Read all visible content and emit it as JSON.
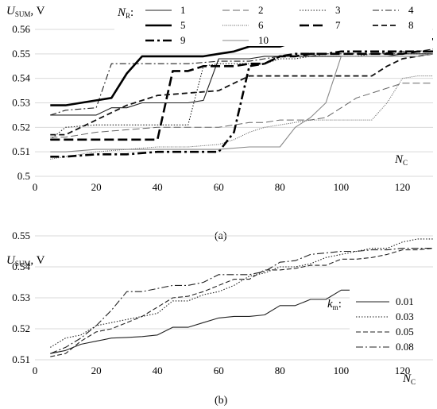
{
  "chart_data": [
    {
      "panel": "(a)",
      "type": "line",
      "ylabel": "U",
      "ylabel_sub": "SUM",
      "ylabel_unit": ", V",
      "xlabel": "N",
      "xlabel_sub": "C",
      "legend_title": "N",
      "legend_title_sub": "R",
      "legend_title_suffix": ":",
      "xlim": [
        0,
        130
      ],
      "ylim": [
        0.5,
        0.56
      ],
      "xticks": [
        "0",
        "20",
        "40",
        "60",
        "80",
        "100",
        "120"
      ],
      "yticks": [
        "0.5",
        "0.51",
        "0.52",
        "0.53",
        "0.54",
        "0.55",
        "0.56"
      ],
      "series": [
        {
          "name": "1",
          "style": "solid-thin",
          "x": [
            5,
            10,
            20,
            25,
            30,
            35,
            40,
            45,
            50,
            55,
            60,
            65,
            70,
            75,
            80,
            85,
            90,
            95,
            100,
            105,
            110,
            115,
            120,
            125,
            130
          ],
          "y": [
            0.525,
            0.525,
            0.525,
            0.528,
            0.528,
            0.53,
            0.53,
            0.53,
            0.53,
            0.531,
            0.548,
            0.548,
            0.548,
            0.549,
            0.549,
            0.549,
            0.549,
            0.549,
            0.549,
            0.549,
            0.549,
            0.549,
            0.55,
            0.55,
            0.55
          ]
        },
        {
          "name": "2",
          "style": "long-dash-thin",
          "x": [
            5,
            10,
            20,
            30,
            40,
            50,
            60,
            65,
            70,
            75,
            80,
            85,
            90,
            95,
            100,
            105,
            110,
            115,
            120,
            125,
            130
          ],
          "y": [
            0.516,
            0.516,
            0.518,
            0.519,
            0.52,
            0.52,
            0.52,
            0.521,
            0.522,
            0.522,
            0.523,
            0.523,
            0.523,
            0.524,
            0.528,
            0.532,
            0.534,
            0.536,
            0.538,
            0.538,
            0.538
          ]
        },
        {
          "name": "3",
          "style": "dotted",
          "x": [
            5,
            10,
            20,
            30,
            40,
            45,
            50,
            55,
            60,
            65,
            70,
            75,
            80,
            85,
            90,
            95,
            100,
            105,
            110,
            115,
            120,
            125,
            130
          ],
          "y": [
            0.515,
            0.52,
            0.521,
            0.521,
            0.521,
            0.521,
            0.521,
            0.545,
            0.546,
            0.546,
            0.546,
            0.546,
            0.548,
            0.548,
            0.549,
            0.549,
            0.549,
            0.549,
            0.55,
            0.55,
            0.55,
            0.55,
            0.55
          ]
        },
        {
          "name": "4",
          "style": "dash-dot-thin",
          "x": [
            5,
            10,
            20,
            25,
            30,
            40,
            50,
            60,
            65,
            70,
            75,
            80,
            85,
            90,
            95,
            100,
            110,
            120,
            125,
            130
          ],
          "y": [
            0.525,
            0.527,
            0.528,
            0.546,
            0.546,
            0.546,
            0.546,
            0.547,
            0.547,
            0.547,
            0.548,
            0.549,
            0.549,
            0.549,
            0.55,
            0.55,
            0.55,
            0.551,
            0.551,
            0.552
          ]
        },
        {
          "name": "5",
          "style": "solid-bold",
          "x": [
            5,
            10,
            15,
            20,
            25,
            30,
            35,
            40,
            45,
            50,
            55,
            60,
            65,
            70,
            75,
            80,
            85,
            90,
            95,
            100,
            105,
            110,
            115,
            120,
            125,
            130
          ],
          "y": [
            0.529,
            0.529,
            0.53,
            0.531,
            0.532,
            0.542,
            0.549,
            0.549,
            0.549,
            0.549,
            0.549,
            0.55,
            0.551,
            0.553,
            0.553,
            0.553,
            0.555,
            0.555,
            0.555,
            0.555,
            0.555,
            0.555,
            0.555,
            0.556,
            0.556,
            0.556
          ]
        },
        {
          "name": "6",
          "style": "fine-dotted",
          "x": [
            5,
            10,
            20,
            30,
            40,
            50,
            60,
            65,
            70,
            75,
            80,
            85,
            90,
            95,
            100,
            105,
            110,
            115,
            120,
            125,
            130
          ],
          "y": [
            0.507,
            0.508,
            0.51,
            0.511,
            0.512,
            0.512,
            0.513,
            0.515,
            0.518,
            0.52,
            0.521,
            0.522,
            0.523,
            0.523,
            0.523,
            0.523,
            0.523,
            0.53,
            0.54,
            0.541,
            0.541
          ]
        },
        {
          "name": "7",
          "style": "long-dash-bold",
          "x": [
            5,
            10,
            20,
            30,
            40,
            45,
            50,
            55,
            60,
            65,
            70,
            75,
            80,
            85,
            90,
            95,
            100,
            105,
            110,
            115,
            120,
            125,
            130
          ],
          "y": [
            0.515,
            0.515,
            0.515,
            0.515,
            0.515,
            0.543,
            0.543,
            0.545,
            0.545,
            0.545,
            0.546,
            0.546,
            0.549,
            0.549,
            0.55,
            0.55,
            0.55,
            0.55,
            0.55,
            0.55,
            0.55,
            0.551,
            0.551
          ]
        },
        {
          "name": "8",
          "style": "dash-medium",
          "x": [
            5,
            10,
            20,
            30,
            40,
            50,
            60,
            65,
            70,
            75,
            80,
            85,
            90,
            95,
            100,
            105,
            110,
            115,
            120,
            125,
            130
          ],
          "y": [
            0.517,
            0.517,
            0.523,
            0.529,
            0.533,
            0.534,
            0.535,
            0.538,
            0.541,
            0.541,
            0.541,
            0.541,
            0.541,
            0.541,
            0.541,
            0.541,
            0.541,
            0.545,
            0.548,
            0.549,
            0.55
          ]
        },
        {
          "name": "9",
          "style": "dash-dot-bold",
          "x": [
            5,
            10,
            20,
            30,
            40,
            50,
            60,
            65,
            70,
            75,
            80,
            85,
            90,
            95,
            100,
            105,
            110,
            115,
            120,
            125,
            130
          ],
          "y": [
            0.508,
            0.508,
            0.509,
            0.509,
            0.51,
            0.51,
            0.51,
            0.518,
            0.545,
            0.546,
            0.549,
            0.55,
            0.55,
            0.55,
            0.551,
            0.551,
            0.551,
            0.551,
            0.551,
            0.551,
            0.551
          ]
        },
        {
          "name": "10",
          "style": "solid-grey",
          "x": [
            5,
            10,
            20,
            30,
            40,
            50,
            60,
            70,
            80,
            85,
            90,
            95,
            100,
            105,
            110,
            115,
            120,
            125,
            130
          ],
          "y": [
            0.51,
            0.51,
            0.511,
            0.511,
            0.511,
            0.511,
            0.511,
            0.512,
            0.512,
            0.52,
            0.524,
            0.53,
            0.549,
            0.549,
            0.549,
            0.549,
            0.549,
            0.549,
            0.55
          ]
        }
      ]
    },
    {
      "panel": "(b)",
      "type": "line",
      "ylabel": "U",
      "ylabel_sub": "SUM",
      "ylabel_unit": ", V",
      "xlabel": "N",
      "xlabel_sub": "C",
      "legend_title": "k",
      "legend_title_sub": "m",
      "legend_title_suffix": ":",
      "xlim": [
        0,
        130
      ],
      "ylim": [
        0.51,
        0.55
      ],
      "xticks": [
        "0",
        "20",
        "40",
        "60",
        "80",
        "100",
        "120"
      ],
      "yticks": [
        "0.51",
        "0.52",
        "0.53",
        "0.54",
        "0.55"
      ],
      "series": [
        {
          "name": "0.01",
          "style": "solid",
          "x": [
            5,
            10,
            15,
            20,
            25,
            30,
            35,
            40,
            45,
            50,
            55,
            60,
            65,
            70,
            75,
            80,
            85,
            90,
            95,
            100,
            105,
            110,
            115,
            120,
            125,
            130
          ],
          "y": [
            0.512,
            0.513,
            0.515,
            0.516,
            0.517,
            0.5172,
            0.5175,
            0.518,
            0.5205,
            0.5205,
            0.522,
            0.5235,
            0.524,
            0.524,
            0.5245,
            0.5275,
            0.5275,
            0.5295,
            0.5295,
            0.5325,
            0.5325,
            0.5325,
            0.5325,
            0.5325,
            0.5325,
            0.5325
          ]
        },
        {
          "name": "0.03",
          "style": "dotted",
          "x": [
            5,
            10,
            15,
            20,
            25,
            30,
            35,
            40,
            45,
            50,
            55,
            60,
            65,
            70,
            75,
            80,
            85,
            90,
            95,
            100,
            105,
            110,
            115,
            120,
            125,
            130
          ],
          "y": [
            0.514,
            0.517,
            0.518,
            0.521,
            0.522,
            0.523,
            0.524,
            0.525,
            0.529,
            0.529,
            0.531,
            0.532,
            0.534,
            0.537,
            0.538,
            0.54,
            0.54,
            0.541,
            0.543,
            0.544,
            0.545,
            0.546,
            0.546,
            0.548,
            0.549,
            0.549
          ]
        },
        {
          "name": "0.05",
          "style": "dashed",
          "x": [
            5,
            10,
            15,
            20,
            25,
            30,
            35,
            40,
            45,
            50,
            55,
            60,
            65,
            70,
            75,
            80,
            85,
            90,
            95,
            100,
            105,
            110,
            115,
            120,
            125,
            130
          ],
          "y": [
            0.511,
            0.512,
            0.516,
            0.519,
            0.52,
            0.522,
            0.524,
            0.527,
            0.53,
            0.5305,
            0.532,
            0.534,
            0.536,
            0.536,
            0.539,
            0.539,
            0.5395,
            0.5405,
            0.5405,
            0.5425,
            0.5425,
            0.543,
            0.544,
            0.5455,
            0.5455,
            0.546
          ]
        },
        {
          "name": "0.08",
          "style": "dashdot",
          "x": [
            5,
            10,
            15,
            20,
            25,
            30,
            35,
            40,
            45,
            50,
            55,
            60,
            65,
            70,
            75,
            80,
            85,
            90,
            95,
            100,
            105,
            110,
            115,
            120,
            125,
            130
          ],
          "y": [
            0.512,
            0.514,
            0.517,
            0.521,
            0.526,
            0.532,
            0.532,
            0.533,
            0.534,
            0.534,
            0.535,
            0.5375,
            0.5375,
            0.5375,
            0.5385,
            0.5415,
            0.542,
            0.544,
            0.5445,
            0.545,
            0.545,
            0.5455,
            0.5455,
            0.546,
            0.546,
            0.546
          ]
        }
      ]
    }
  ]
}
